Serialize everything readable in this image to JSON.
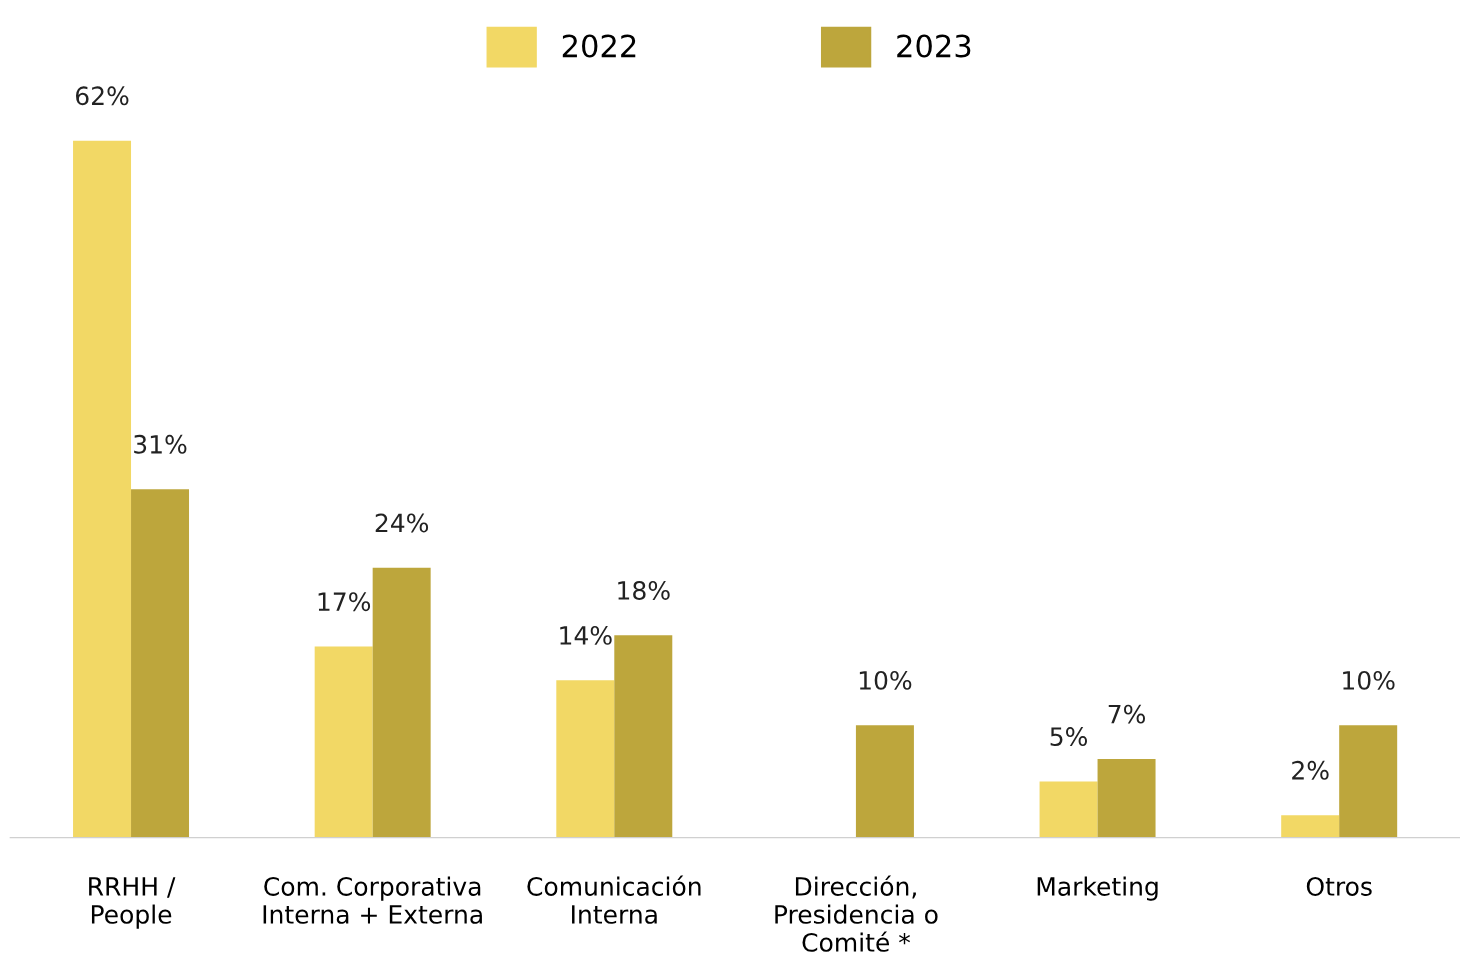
{
  "chart_data": {
    "type": "bar",
    "categories": [
      "RRHH /\nPeople",
      "Com. Corporativa\nInterna + Externa",
      "Comunicación\nInterna",
      "Dirección,\nPresidencia o\nComité *",
      "Marketing",
      "Otros"
    ],
    "series": [
      {
        "name": "2022",
        "color": "#f2d865",
        "values": [
          62,
          17,
          14,
          null,
          5,
          2
        ],
        "value_labels": [
          "62%",
          "17%",
          "14%",
          null,
          "5%",
          "2%"
        ]
      },
      {
        "name": "2023",
        "color": "#bda63c",
        "values": [
          31,
          24,
          18,
          10,
          7,
          10
        ],
        "value_labels": [
          "31%",
          "24%",
          "18%",
          "10%",
          "7%",
          "10%"
        ]
      }
    ],
    "legend": "top",
    "grid": false,
    "tick_labels": "x"
  }
}
